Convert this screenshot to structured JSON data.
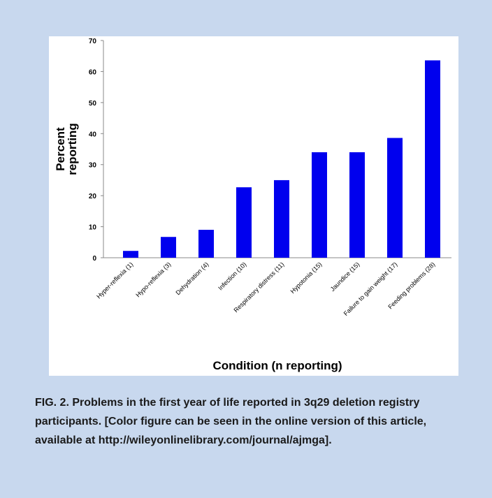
{
  "chart_data": {
    "type": "bar",
    "x_label": "Condition (n reporting)",
    "y_label": [
      "Percent",
      "reporting"
    ],
    "categories": [
      "Hyper-reflexia (1)",
      "Hypo-reflexia (3)",
      "Dehydration (4)",
      "Infection (10)",
      "Respiratory distress (11)",
      "Hypotonia (15)",
      "Jaundice (15)",
      "Failure to gain weight (17)",
      "Feeding problems (28)"
    ],
    "values": [
      2.2,
      6.7,
      9,
      22.7,
      25,
      34,
      34,
      38.6,
      63.6
    ],
    "color": "#0000ee",
    "ylim": [
      0,
      70
    ],
    "yticks": [
      0,
      10,
      20,
      30,
      40,
      50,
      60,
      70
    ],
    "grid": false
  },
  "caption": "FIG. 2.  Problems in the first year of life reported in 3q29 deletion registry participants. [Color figure can be seen in the online version of this article, available at http://wileyonlinelibrary.com/journal/ajmga]."
}
